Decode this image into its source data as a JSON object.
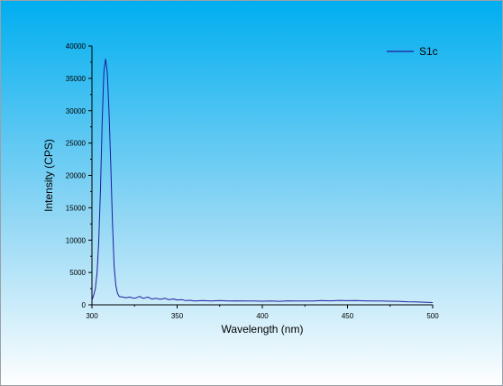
{
  "chart_data": {
    "type": "line",
    "title": "",
    "xlabel": "Wavelength (nm)",
    "ylabel": "Intensity (CPS)",
    "xlim": [
      300,
      500
    ],
    "ylim": [
      0,
      40000
    ],
    "x_ticks": [
      300,
      350,
      400,
      450,
      500
    ],
    "y_ticks": [
      0,
      5000,
      10000,
      15000,
      20000,
      25000,
      30000,
      35000,
      40000
    ],
    "grid": false,
    "legend_position": "top-right",
    "series": [
      {
        "name": "S1c",
        "color": "#1c1c9e",
        "x": [
          300,
          301,
          302,
          303,
          304,
          305,
          306,
          307,
          308,
          309,
          310,
          311,
          312,
          313,
          314,
          315,
          316,
          318,
          320,
          322,
          325,
          328,
          330,
          333,
          335,
          338,
          340,
          343,
          345,
          348,
          350,
          353,
          355,
          358,
          360,
          365,
          370,
          375,
          380,
          385,
          390,
          395,
          400,
          405,
          410,
          415,
          420,
          425,
          430,
          435,
          440,
          445,
          450,
          455,
          460,
          465,
          470,
          475,
          480,
          485,
          490,
          495,
          500
        ],
        "values": [
          700,
          1500,
          2500,
          5000,
          10000,
          18000,
          28000,
          36000,
          38000,
          36000,
          30000,
          22000,
          13000,
          6000,
          3000,
          1800,
          1300,
          1200,
          1100,
          1200,
          1000,
          1300,
          1000,
          1200,
          900,
          1000,
          850,
          1000,
          800,
          900,
          750,
          800,
          650,
          700,
          600,
          650,
          600,
          650,
          600,
          620,
          580,
          600,
          560,
          600,
          550,
          620,
          580,
          600,
          600,
          650,
          620,
          680,
          640,
          650,
          620,
          600,
          580,
          560,
          550,
          480,
          450,
          400,
          350
        ]
      }
    ]
  }
}
